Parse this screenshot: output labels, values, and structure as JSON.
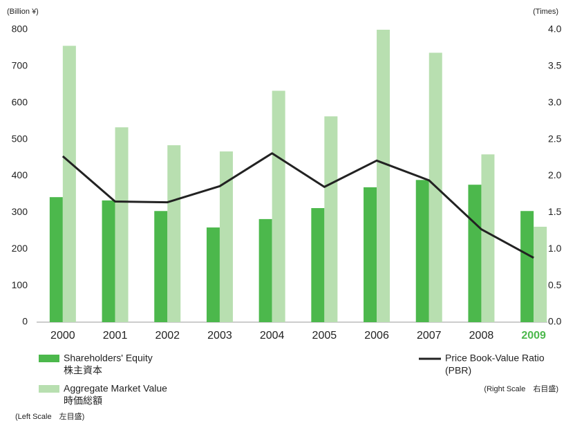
{
  "chart_data": {
    "type": "bar_line",
    "y_unit": "(Billion ¥)",
    "y2_unit": "(Times)",
    "categories": [
      "2000",
      "2001",
      "2002",
      "2003",
      "2004",
      "2005",
      "2006",
      "2007",
      "2008",
      "2009"
    ],
    "highlight": {
      "index": 9,
      "color": "#4cb84c"
    },
    "series": [
      {
        "name": "Shareholders' Equity",
        "name_ja": "株主資本",
        "type": "bar",
        "color": "#4cb84c",
        "values": [
          342,
          333,
          304,
          259,
          282,
          312,
          369,
          389,
          376,
          304
        ]
      },
      {
        "name": "Aggregate Market Value",
        "name_ja": "時価総額",
        "type": "bar",
        "color": "#b8dfb0",
        "values": [
          756,
          533,
          484,
          467,
          633,
          563,
          800,
          737,
          459,
          261
        ]
      },
      {
        "name": "Price Book-Value Ratio",
        "name_sub": "(PBR)",
        "type": "line",
        "axis": "y2",
        "color": "#222222",
        "values": [
          2.27,
          1.65,
          1.64,
          1.86,
          2.31,
          1.85,
          2.21,
          1.94,
          1.27,
          0.88
        ]
      }
    ],
    "left_note": "(Left Scale　左目盛)",
    "right_note": "(Right Scale　右目盛)",
    "ylim": [
      0,
      800
    ],
    "yticks": [
      0,
      100,
      200,
      300,
      400,
      500,
      600,
      700,
      800
    ],
    "y2lim": [
      0,
      4
    ],
    "y2ticks": [
      {
        "value": 0,
        "label": "0.0"
      },
      0.5,
      {
        "value": 1,
        "label": "1.0"
      },
      1.5,
      {
        "value": 2,
        "label": "2.0"
      },
      2.5,
      {
        "value": 3,
        "label": "3.0"
      },
      3.5,
      {
        "value": 4,
        "label": "4.0"
      }
    ],
    "grid": false
  }
}
